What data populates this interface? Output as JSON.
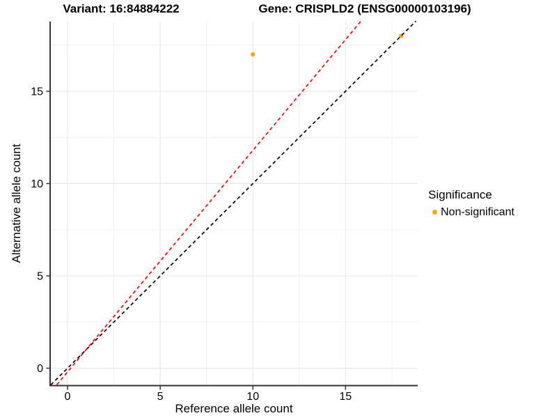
{
  "figure": {
    "title_left": "Variant: 16:84884222",
    "title_right": "Gene: CRISPLD2 (ENSG00000103196)"
  },
  "axes": {
    "x_title": "Reference allele count",
    "y_title": "Alternative allele count"
  },
  "legend": {
    "title": "Significance",
    "items": [
      {
        "label": "Non-significant",
        "color": "#FFA500"
      }
    ]
  },
  "chart_data": {
    "type": "scatter",
    "title": "Variant: 16:84884222 | Gene: CRISPLD2 (ENSG00000103196)",
    "xlabel": "Reference allele count",
    "ylabel": "Alternative allele count",
    "xlim": [
      -0.9,
      18.9
    ],
    "ylim": [
      -0.9,
      18.8
    ],
    "x_ticks": [
      0,
      5,
      10,
      15
    ],
    "y_ticks": [
      0,
      5,
      10,
      15
    ],
    "x_minor_gridlines": [
      2.5,
      7.5,
      12.5,
      17.5
    ],
    "y_minor_gridlines": [
      2.5,
      7.5,
      12.5,
      17.5
    ],
    "grid": true,
    "legend_position": "right",
    "series": [
      {
        "name": "Non-significant",
        "color": "#FFA500",
        "points": [
          {
            "x": 10,
            "y": 17
          },
          {
            "x": 18,
            "y": 18
          }
        ]
      }
    ],
    "reference_lines": [
      {
        "name": "identity",
        "slope": 1.0,
        "intercept": 0.0,
        "color": "#000000",
        "style": "dashed"
      },
      {
        "name": "fitted-ratio",
        "slope": 1.2,
        "intercept": -0.2,
        "color": "#FF0000",
        "style": "dashed"
      }
    ],
    "colors": {
      "grid_major": "#E4E4E4",
      "grid_minor": "#EFEFEF",
      "axis_line": "#333333",
      "tick_text": "#000000",
      "point_non_significant": "#FFA500"
    }
  }
}
